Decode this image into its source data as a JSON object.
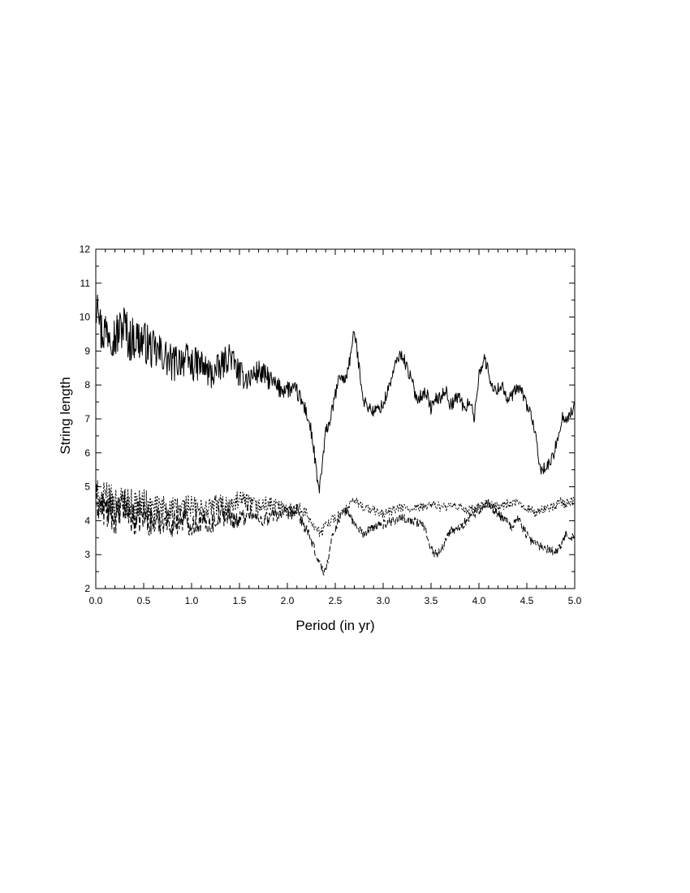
{
  "chart_data": {
    "type": "line",
    "title": "",
    "xlabel": "Period (in yr)",
    "ylabel": "String length",
    "xlim": [
      0.0,
      5.0
    ],
    "ylim": [
      2,
      12
    ],
    "x_ticks": [
      "0.0",
      "0.5",
      "1.0",
      "1.5",
      "2.0",
      "2.5",
      "3.0",
      "3.5",
      "4.0",
      "4.5",
      "5.0"
    ],
    "y_ticks": [
      "2",
      "3",
      "4",
      "5",
      "6",
      "7",
      "8",
      "9",
      "10",
      "11",
      "12"
    ],
    "grid": false,
    "legend": "none",
    "series": [
      {
        "style": "solid",
        "color": "#000000",
        "points": [
          [
            0.0,
            10.2
          ],
          [
            0.02,
            11.1
          ],
          [
            0.05,
            9.6
          ],
          [
            0.1,
            9.6
          ],
          [
            0.15,
            9.7
          ],
          [
            0.2,
            9.4
          ],
          [
            0.3,
            9.8
          ],
          [
            0.35,
            9.3
          ],
          [
            0.4,
            9.4
          ],
          [
            0.5,
            9.3
          ],
          [
            0.6,
            9.0
          ],
          [
            0.7,
            8.9
          ],
          [
            0.8,
            8.6
          ],
          [
            0.9,
            8.8
          ],
          [
            1.0,
            8.6
          ],
          [
            1.1,
            8.6
          ],
          [
            1.2,
            8.3
          ],
          [
            1.3,
            8.5
          ],
          [
            1.4,
            8.9
          ],
          [
            1.5,
            8.3
          ],
          [
            1.6,
            8.2
          ],
          [
            1.7,
            8.4
          ],
          [
            1.8,
            8.2
          ],
          [
            1.9,
            7.9
          ],
          [
            2.0,
            7.9
          ],
          [
            2.1,
            7.8
          ],
          [
            2.2,
            7.2
          ],
          [
            2.25,
            6.6
          ],
          [
            2.28,
            6.0
          ],
          [
            2.31,
            5.2
          ],
          [
            2.33,
            4.9
          ],
          [
            2.36,
            5.5
          ],
          [
            2.4,
            6.6
          ],
          [
            2.45,
            7.0
          ],
          [
            2.5,
            7.7
          ],
          [
            2.55,
            8.3
          ],
          [
            2.6,
            8.1
          ],
          [
            2.65,
            8.7
          ],
          [
            2.7,
            9.6
          ],
          [
            2.75,
            8.5
          ],
          [
            2.8,
            7.5
          ],
          [
            2.9,
            7.2
          ],
          [
            3.0,
            7.4
          ],
          [
            3.1,
            8.3
          ],
          [
            3.15,
            8.8
          ],
          [
            3.2,
            8.9
          ],
          [
            3.25,
            8.5
          ],
          [
            3.3,
            8.1
          ],
          [
            3.35,
            7.6
          ],
          [
            3.45,
            7.8
          ],
          [
            3.5,
            7.3
          ],
          [
            3.55,
            7.6
          ],
          [
            3.6,
            7.6
          ],
          [
            3.65,
            7.9
          ],
          [
            3.7,
            7.4
          ],
          [
            3.8,
            7.7
          ],
          [
            3.85,
            7.2
          ],
          [
            3.9,
            7.6
          ],
          [
            3.95,
            7.0
          ],
          [
            4.0,
            8.3
          ],
          [
            4.05,
            8.8
          ],
          [
            4.1,
            8.4
          ],
          [
            4.15,
            7.8
          ],
          [
            4.2,
            7.9
          ],
          [
            4.25,
            8.0
          ],
          [
            4.3,
            7.5
          ],
          [
            4.4,
            7.9
          ],
          [
            4.45,
            7.8
          ],
          [
            4.5,
            7.4
          ],
          [
            4.55,
            7.1
          ],
          [
            4.6,
            6.3
          ],
          [
            4.63,
            5.6
          ],
          [
            4.67,
            5.5
          ],
          [
            4.72,
            5.6
          ],
          [
            4.78,
            5.9
          ],
          [
            4.83,
            6.6
          ],
          [
            4.88,
            7.1
          ],
          [
            4.93,
            7.0
          ],
          [
            5.0,
            7.4
          ]
        ]
      },
      {
        "style": "dashed",
        "color": "#000000",
        "points": [
          [
            0.0,
            4.6
          ],
          [
            0.1,
            4.3
          ],
          [
            0.2,
            4.1
          ],
          [
            0.3,
            4.4
          ],
          [
            0.4,
            4.0
          ],
          [
            0.5,
            4.2
          ],
          [
            0.6,
            3.9
          ],
          [
            0.7,
            4.1
          ],
          [
            0.8,
            3.9
          ],
          [
            0.9,
            4.1
          ],
          [
            1.0,
            3.9
          ],
          [
            1.1,
            4.0
          ],
          [
            1.2,
            3.9
          ],
          [
            1.3,
            4.2
          ],
          [
            1.4,
            4.1
          ],
          [
            1.5,
            4.0
          ],
          [
            1.6,
            4.3
          ],
          [
            1.7,
            4.0
          ],
          [
            1.8,
            4.1
          ],
          [
            1.9,
            4.2
          ],
          [
            2.0,
            4.2
          ],
          [
            2.1,
            4.3
          ],
          [
            2.15,
            4.0
          ],
          [
            2.2,
            3.7
          ],
          [
            2.25,
            3.4
          ],
          [
            2.3,
            3.0
          ],
          [
            2.35,
            2.7
          ],
          [
            2.38,
            2.4
          ],
          [
            2.42,
            2.8
          ],
          [
            2.46,
            3.4
          ],
          [
            2.5,
            3.8
          ],
          [
            2.55,
            4.1
          ],
          [
            2.6,
            4.3
          ],
          [
            2.65,
            4.2
          ],
          [
            2.7,
            3.9
          ],
          [
            2.8,
            3.6
          ],
          [
            2.9,
            3.8
          ],
          [
            3.0,
            3.9
          ],
          [
            3.1,
            4.0
          ],
          [
            3.2,
            4.1
          ],
          [
            3.3,
            4.0
          ],
          [
            3.4,
            3.9
          ],
          [
            3.45,
            3.7
          ],
          [
            3.5,
            3.2
          ],
          [
            3.55,
            3.0
          ],
          [
            3.6,
            3.1
          ],
          [
            3.7,
            3.7
          ],
          [
            3.8,
            3.8
          ],
          [
            3.9,
            4.1
          ],
          [
            4.0,
            4.3
          ],
          [
            4.1,
            4.5
          ],
          [
            4.2,
            4.2
          ],
          [
            4.3,
            4.0
          ],
          [
            4.35,
            3.8
          ],
          [
            4.4,
            4.1
          ],
          [
            4.5,
            3.6
          ],
          [
            4.55,
            3.4
          ],
          [
            4.6,
            3.3
          ],
          [
            4.7,
            3.2
          ],
          [
            4.8,
            3.1
          ],
          [
            4.85,
            3.2
          ],
          [
            4.9,
            3.6
          ],
          [
            5.0,
            3.5
          ]
        ]
      },
      {
        "style": "dotted",
        "color": "#000000",
        "points": [
          [
            0.0,
            4.7
          ],
          [
            0.1,
            4.6
          ],
          [
            0.2,
            4.5
          ],
          [
            0.3,
            4.6
          ],
          [
            0.4,
            4.4
          ],
          [
            0.5,
            4.5
          ],
          [
            0.6,
            4.3
          ],
          [
            0.7,
            4.4
          ],
          [
            0.8,
            4.3
          ],
          [
            0.9,
            4.4
          ],
          [
            1.0,
            4.4
          ],
          [
            1.1,
            4.3
          ],
          [
            1.2,
            4.4
          ],
          [
            1.3,
            4.5
          ],
          [
            1.4,
            4.4
          ],
          [
            1.5,
            4.6
          ],
          [
            1.6,
            4.5
          ],
          [
            1.7,
            4.4
          ],
          [
            1.8,
            4.5
          ],
          [
            1.9,
            4.4
          ],
          [
            2.0,
            4.3
          ],
          [
            2.1,
            4.4
          ],
          [
            2.2,
            4.2
          ],
          [
            2.25,
            4.0
          ],
          [
            2.3,
            3.8
          ],
          [
            2.35,
            3.6
          ],
          [
            2.4,
            3.9
          ],
          [
            2.5,
            4.1
          ],
          [
            2.6,
            4.3
          ],
          [
            2.7,
            4.6
          ],
          [
            2.8,
            4.4
          ],
          [
            2.9,
            4.3
          ],
          [
            3.0,
            4.2
          ],
          [
            3.1,
            4.3
          ],
          [
            3.2,
            4.4
          ],
          [
            3.3,
            4.3
          ],
          [
            3.4,
            4.4
          ],
          [
            3.5,
            4.5
          ],
          [
            3.6,
            4.4
          ],
          [
            3.7,
            4.4
          ],
          [
            3.8,
            4.4
          ],
          [
            3.9,
            4.3
          ],
          [
            4.0,
            4.4
          ],
          [
            4.1,
            4.5
          ],
          [
            4.2,
            4.4
          ],
          [
            4.3,
            4.5
          ],
          [
            4.4,
            4.5
          ],
          [
            4.5,
            4.4
          ],
          [
            4.6,
            4.2
          ],
          [
            4.7,
            4.4
          ],
          [
            4.8,
            4.4
          ],
          [
            4.85,
            4.6
          ],
          [
            4.9,
            4.5
          ],
          [
            5.0,
            4.6
          ]
        ]
      }
    ]
  }
}
